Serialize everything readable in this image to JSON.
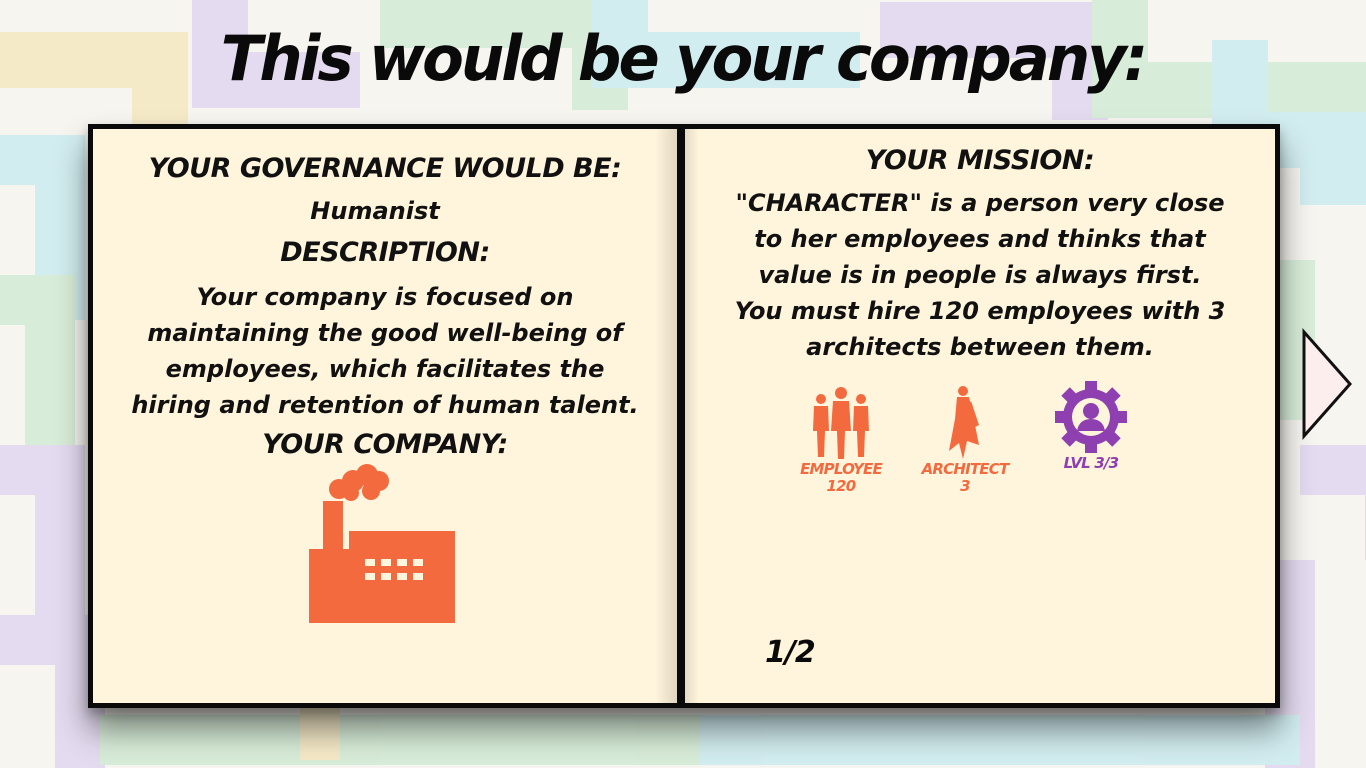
{
  "title": "This would be your company:",
  "left_page": {
    "governance_heading": "YOUR GOVERNANCE WOULD BE:",
    "governance_value": "Humanist",
    "description_heading": "DESCRIPTION:",
    "description_lines": [
      "Your company is focused on",
      "maintaining the good well-being of",
      "employees, which facilitates the",
      "hiring and retention of human talent."
    ],
    "company_heading": "YOUR COMPANY:",
    "company_icon": "factory-icon"
  },
  "right_page": {
    "mission_heading": "YOUR MISSION:",
    "mission_lines": [
      "\"CHARACTER\" is a person very close",
      "to her employees and thinks that",
      "value is in people is always first.",
      "You must hire 120 employees with 3",
      "architects between them."
    ],
    "stats": [
      {
        "icon": "employees-icon",
        "label": "EMPLOYEE",
        "value": "120",
        "color": "#f26a3d"
      },
      {
        "icon": "architect-icon",
        "label": "ARCHITECT",
        "value": "3",
        "color": "#f26a3d"
      },
      {
        "icon": "level-gear-icon",
        "label": "LVL 3/3",
        "color": "#8e3fb0"
      }
    ],
    "page_number": "1/2"
  },
  "navigation": {
    "next_icon": "next-arrow-icon"
  },
  "colors": {
    "accent_orange": "#f26a3d",
    "accent_purple": "#8e3fb0",
    "paper": "#fff4dc",
    "border": "#0a0a0a"
  }
}
